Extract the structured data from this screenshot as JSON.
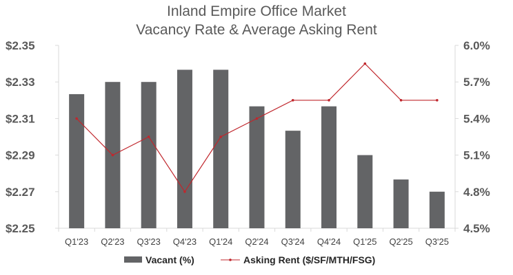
{
  "chart_data": {
    "type": "bar",
    "title": [
      "Inland Empire Office Market",
      "Vacancy Rate & Average Asking Rent"
    ],
    "categories": [
      "Q1'23",
      "Q2'23",
      "Q3'23",
      "Q4'23",
      "Q1'24",
      "Q2'24",
      "Q3'24",
      "Q4'24",
      "Q1'25",
      "Q2'25",
      "Q3'25"
    ],
    "series": [
      {
        "name": "Vacant (%)",
        "type": "bar",
        "axis": "right",
        "color": "#636466",
        "values": [
          5.6,
          5.7,
          5.7,
          5.8,
          5.8,
          5.5,
          5.3,
          5.5,
          5.1,
          4.9,
          4.8
        ]
      },
      {
        "name": "Asking Rent ($/SF/MTH/FSG)",
        "type": "line",
        "axis": "left",
        "color": "#c0272d",
        "values": [
          2.31,
          2.29,
          2.3,
          2.27,
          2.3,
          2.31,
          2.32,
          2.32,
          2.34,
          2.32,
          2.32
        ]
      }
    ],
    "y_left": {
      "ylim": [
        2.25,
        2.35
      ],
      "ticks": [
        2.35,
        2.33,
        2.31,
        2.29,
        2.27,
        2.25
      ],
      "tick_labels": [
        "$2.35",
        "$2.33",
        "$2.31",
        "$2.29",
        "$2.27",
        "$2.25"
      ]
    },
    "y_right": {
      "ylim": [
        4.5,
        6.0
      ],
      "ticks": [
        6.0,
        5.7,
        5.4,
        5.1,
        4.8,
        4.5
      ],
      "tick_labels": [
        "6.0%",
        "5.7%",
        "5.4%",
        "5.1%",
        "4.8%",
        "4.5%"
      ]
    },
    "grid": false,
    "legend": "bottom"
  }
}
